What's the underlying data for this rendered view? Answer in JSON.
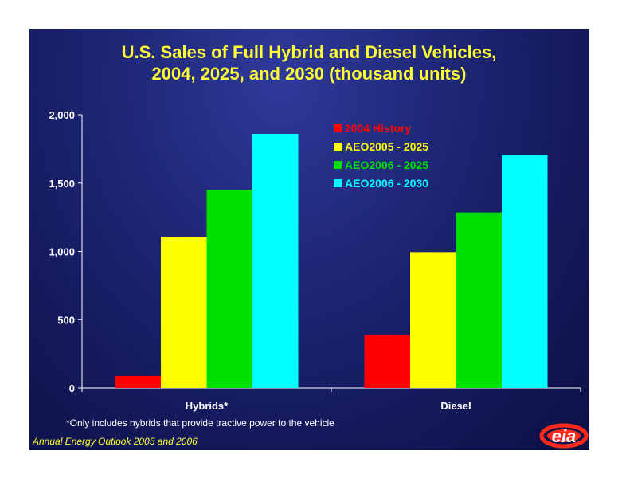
{
  "chart_data": {
    "type": "bar",
    "title_lines": [
      "U.S. Sales of Full Hybrid and Diesel Vehicles,",
      "2004, 2025, and 2030 (thousand units)"
    ],
    "categories": [
      "Hybrids*",
      "Diesel"
    ],
    "series": [
      {
        "name": "2004 History",
        "color": "#ff0000",
        "values": [
          88,
          388
        ]
      },
      {
        "name": "AEO2005 - 2025",
        "color": "#ffff00",
        "values": [
          1108,
          995
        ]
      },
      {
        "name": "AEO2006 - 2025",
        "color": "#00e000",
        "values": [
          1450,
          1285
        ]
      },
      {
        "name": "AEO2006 - 2030",
        "color": "#00ffff",
        "values": [
          1860,
          1705
        ]
      }
    ],
    "ylim": [
      0,
      2000
    ],
    "yticks": [
      0,
      500,
      1000,
      1500,
      2000
    ],
    "ytick_labels": [
      "0",
      "500",
      "1,000",
      "1,500",
      "2,000"
    ],
    "legend_position": "top-right",
    "grid": false
  },
  "footnote": "*Only includes hybrids that provide tractive power to the vehicle",
  "source": "Annual Energy Outlook 2005 and 2006",
  "logo": {
    "text": "eia",
    "colors": {
      "ring": "#ff2a1a",
      "text": "#ffffff"
    }
  }
}
